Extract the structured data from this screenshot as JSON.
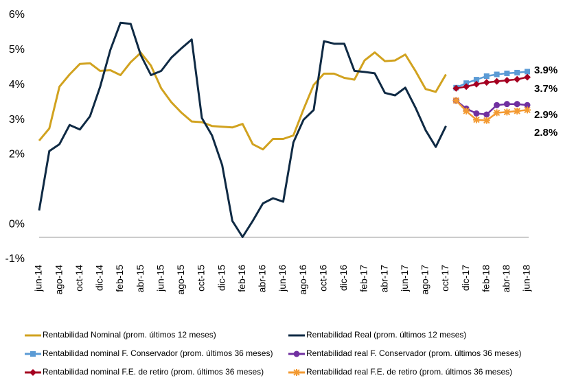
{
  "chart_data": {
    "type": "line",
    "categories": [
      "jun-14",
      null,
      "ago-14",
      null,
      "oct-14",
      null,
      "dic-14",
      null,
      "feb-15",
      null,
      "abr-15",
      null,
      "jun-15",
      null,
      "ago-15",
      null,
      "oct-15",
      null,
      "dic-15",
      null,
      "feb-16",
      null,
      "abr-16",
      null,
      "jun-16",
      null,
      "ago-16",
      null,
      "oct-16",
      null,
      "dic-16",
      null,
      "feb-17",
      null,
      "abr-17",
      null,
      "jun-17",
      null,
      "ago-17",
      null,
      "oct-17",
      null,
      "dic-17",
      null,
      "feb-18",
      null,
      "abr-18",
      null,
      "jun-18"
    ],
    "series": [
      {
        "name": "Rentabilidad Nominal (prom. últimos 12 meses)",
        "color": "#d1a21f",
        "marker": "none",
        "values": [
          2.4,
          2.75,
          3.95,
          4.3,
          4.6,
          4.62,
          4.4,
          4.42,
          4.28,
          4.65,
          4.92,
          4.55,
          3.9,
          3.5,
          3.2,
          2.95,
          2.93,
          2.82,
          2.8,
          2.78,
          2.88,
          2.3,
          2.15,
          2.45,
          2.45,
          2.55,
          3.3,
          4.0,
          4.32,
          4.32,
          4.2,
          4.15,
          4.7,
          4.93,
          4.68,
          4.7,
          4.87,
          4.4,
          3.88,
          3.8,
          4.3,
          null,
          null,
          null,
          null,
          null,
          null,
          null,
          null
        ]
      },
      {
        "name": "Rentabilidad Real (prom. últimos 12 meses)",
        "color": "#0f2a44",
        "marker": "none",
        "values": [
          0.4,
          2.1,
          2.3,
          2.85,
          2.72,
          3.1,
          3.95,
          5.0,
          5.78,
          5.75,
          4.85,
          4.28,
          4.4,
          4.78,
          5.05,
          5.3,
          3.05,
          2.55,
          1.7,
          0.1,
          -0.36,
          0.1,
          0.6,
          0.75,
          0.65,
          2.35,
          3.0,
          3.28,
          5.25,
          5.18,
          5.18,
          4.4,
          4.37,
          4.33,
          3.77,
          3.7,
          3.92,
          3.35,
          2.7,
          2.22,
          2.82,
          null,
          null,
          null,
          null,
          null,
          null,
          null,
          null
        ]
      },
      {
        "name": "Rentabilidad nominal F. Conservador (prom. últimos 36 meses)",
        "color": "#5b9bd5",
        "marker": "square",
        "values": [
          null,
          null,
          null,
          null,
          null,
          null,
          null,
          null,
          null,
          null,
          null,
          null,
          null,
          null,
          null,
          null,
          null,
          null,
          null,
          null,
          null,
          null,
          null,
          null,
          null,
          null,
          null,
          null,
          null,
          null,
          null,
          null,
          null,
          null,
          null,
          null,
          null,
          null,
          null,
          null,
          null,
          3.92,
          4.05,
          4.15,
          4.25,
          4.3,
          4.33,
          4.35,
          4.38
        ]
      },
      {
        "name": "Rentabilidad real F. Conservador (prom. últimos 36 meses)",
        "color": "#7030a0",
        "marker": "circle",
        "values": [
          null,
          null,
          null,
          null,
          null,
          null,
          null,
          null,
          null,
          null,
          null,
          null,
          null,
          null,
          null,
          null,
          null,
          null,
          null,
          null,
          null,
          null,
          null,
          null,
          null,
          null,
          null,
          null,
          null,
          null,
          null,
          null,
          null,
          null,
          null,
          null,
          null,
          null,
          null,
          null,
          null,
          3.55,
          3.32,
          3.18,
          3.15,
          3.42,
          3.45,
          3.45,
          3.42
        ]
      },
      {
        "name": "Rentabilidad nominal F.E. de retiro (prom. últimos 36 meses)",
        "color": "#a50021",
        "marker": "diamond",
        "values": [
          null,
          null,
          null,
          null,
          null,
          null,
          null,
          null,
          null,
          null,
          null,
          null,
          null,
          null,
          null,
          null,
          null,
          null,
          null,
          null,
          null,
          null,
          null,
          null,
          null,
          null,
          null,
          null,
          null,
          null,
          null,
          null,
          null,
          null,
          null,
          null,
          null,
          null,
          null,
          null,
          null,
          3.9,
          3.95,
          4.02,
          4.07,
          4.1,
          4.13,
          4.16,
          4.22
        ]
      },
      {
        "name": "Rentabilidad real F.E. de retiro (prom. últimos 36 meses)",
        "color": "#f39a32",
        "marker": "star",
        "values": [
          null,
          null,
          null,
          null,
          null,
          null,
          null,
          null,
          null,
          null,
          null,
          null,
          null,
          null,
          null,
          null,
          null,
          null,
          null,
          null,
          null,
          null,
          null,
          null,
          null,
          null,
          null,
          null,
          null,
          null,
          null,
          null,
          null,
          null,
          null,
          null,
          null,
          null,
          null,
          null,
          null,
          3.55,
          3.25,
          3.0,
          2.98,
          3.2,
          3.22,
          3.25,
          3.28
        ]
      }
    ],
    "annotations": [
      "3.9%",
      "3.7%",
      "2.9%",
      "2.8%"
    ],
    "ylim": [
      -1,
      6
    ],
    "yticks": [
      {
        "value": -1,
        "label": "-1%"
      },
      {
        "value": 0,
        "label": "0%"
      },
      {
        "value": 2,
        "label": "2%"
      },
      {
        "value": 3,
        "label": "3%"
      },
      {
        "value": 4,
        "label": "4%"
      },
      {
        "value": 5,
        "label": "5%"
      },
      {
        "value": 6,
        "label": "6%"
      }
    ],
    "grid": false
  }
}
